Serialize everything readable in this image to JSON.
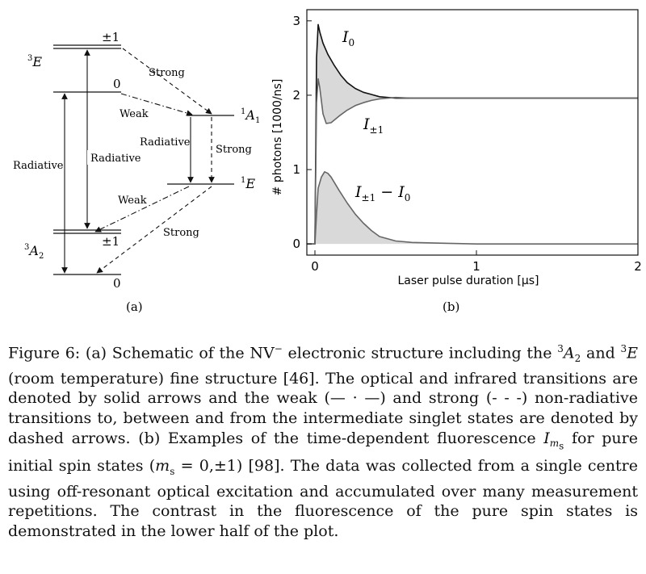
{
  "panel_a": {
    "label": "(a)",
    "states": {
      "E3_pm1": "±1",
      "E3_0": "0",
      "A2_pm1": "±1",
      "A2_0": "0"
    },
    "state_names": {
      "E3": "E",
      "E3_sup": "3",
      "A1": "A",
      "A1_sup": "1",
      "A1_sub": "1",
      "E1": "E",
      "E1_sup": "1",
      "A2": "A",
      "A2_sup": "3",
      "A2_sub": "2"
    },
    "transitions": {
      "strong_top": "Strong",
      "weak_top": "Weak",
      "radiative_singlet": "Radiative",
      "strong_singlet": "Strong",
      "radiative_outer": "Radiative",
      "radiative_inner": "Radiative",
      "weak_bottom": "Weak",
      "strong_bottom": "Strong"
    }
  },
  "panel_b": {
    "label": "(b)",
    "ylabel": "# photons [1000/ns]",
    "xlabel": "Laser pulse duration [μs]",
    "curve_labels": {
      "I0_main": "I",
      "I0_sub": "0",
      "Ipm_main": "I",
      "Ipm_sub": "±1",
      "diff_main": "I",
      "diff_sub1": "±1",
      "diff_minus": " − ",
      "diff_main2": "I",
      "diff_sub2": "0"
    }
  },
  "chart_data": {
    "type": "line",
    "xlim": [
      -0.05,
      2.0
    ],
    "ylim": [
      -0.15,
      3.15
    ],
    "xticks": [
      "0",
      "1",
      "2"
    ],
    "yticks": [
      "0",
      "1",
      "2",
      "3"
    ],
    "series": [
      {
        "name": "I0",
        "color": "#111111",
        "x": [
          -0.05,
          0.0,
          0.01,
          0.02,
          0.03,
          0.05,
          0.08,
          0.12,
          0.16,
          0.2,
          0.25,
          0.3,
          0.35,
          0.4,
          0.5,
          0.6,
          0.8,
          1.0,
          1.5,
          2.0
        ],
        "y": [
          0.0,
          0.0,
          2.5,
          2.95,
          2.85,
          2.7,
          2.55,
          2.4,
          2.27,
          2.17,
          2.09,
          2.04,
          2.01,
          1.98,
          1.96,
          1.96,
          1.96,
          1.96,
          1.96,
          1.96
        ]
      },
      {
        "name": "I±1",
        "color": "#666666",
        "x": [
          -0.05,
          0.0,
          0.01,
          0.02,
          0.03,
          0.05,
          0.07,
          0.1,
          0.15,
          0.2,
          0.25,
          0.3,
          0.35,
          0.4,
          0.5,
          0.6,
          0.8,
          1.0,
          1.5,
          2.0
        ],
        "y": [
          0.0,
          0.0,
          1.9,
          2.22,
          2.1,
          1.75,
          1.62,
          1.63,
          1.72,
          1.8,
          1.86,
          1.9,
          1.93,
          1.95,
          1.97,
          1.96,
          1.96,
          1.96,
          1.96,
          1.96
        ]
      },
      {
        "name": "I±1 − I0",
        "color": "#666666",
        "x": [
          -0.05,
          0.0,
          0.01,
          0.02,
          0.04,
          0.06,
          0.08,
          0.1,
          0.15,
          0.2,
          0.25,
          0.3,
          0.35,
          0.4,
          0.5,
          0.6,
          0.8,
          1.0,
          1.5,
          2.0
        ],
        "y": [
          0.0,
          0.0,
          0.4,
          0.75,
          0.9,
          0.97,
          0.95,
          0.9,
          0.72,
          0.55,
          0.4,
          0.28,
          0.18,
          0.1,
          0.04,
          0.02,
          0.01,
          0.0,
          0.0,
          0.0
        ]
      }
    ]
  },
  "caption": {
    "fig": "Figure 6:",
    "a_lead": "(a) Schematic of the NV",
    "a_minus": "−",
    "a_mid": " electronic structure including the ",
    "a_s1": "3",
    "a_A": "A",
    "a_sub2": "2",
    "line2_and": "and ",
    "a_s2": "3",
    "a_E": "E",
    "a_rest": " (room temperature) fine structure [46].  The optical and infrared transitions are denoted by solid arrows and the weak (— · —) and strong (- - -) non-radiative transitions to, between and from the intermediate singlet states are denoted by dashed arrows.  (b) Examples of the time-dependent fluorescence ",
    "b_I": "I",
    "b_m": "m",
    "b_s": "s",
    "b_mid": " for pure initial spin states (",
    "b_m2": "m",
    "b_s2": "s",
    "b_eq": " = 0,±1) [98].  The data was collected from a single centre using off-resonant optical excitation and accumulated over many measurement repetitions.  The contrast in the fluorescence of the pure spin states is demonstrated in the lower half of the plot."
  }
}
